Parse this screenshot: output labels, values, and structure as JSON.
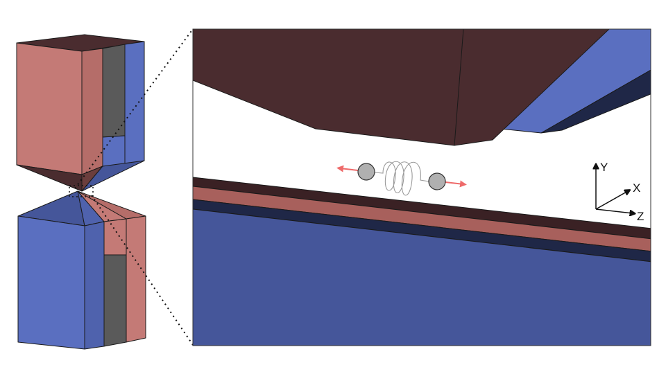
{
  "colors": {
    "background": "#ffffff",
    "pink": "#c47a76",
    "pink_shade": "#a8605c",
    "dark_brown": "#4a2c2f",
    "blue": "#5a6fc0",
    "blue_shade": "#45569a",
    "navy": "#1f2747",
    "gray_face": "#5a5a5a",
    "outline": "#1a1a1a",
    "arrow_red": "#ee6a6a",
    "sphere_gray": "#b0b0b0"
  },
  "axes": {
    "y_label": "Y",
    "x_label": "X",
    "z_label": "Z"
  }
}
